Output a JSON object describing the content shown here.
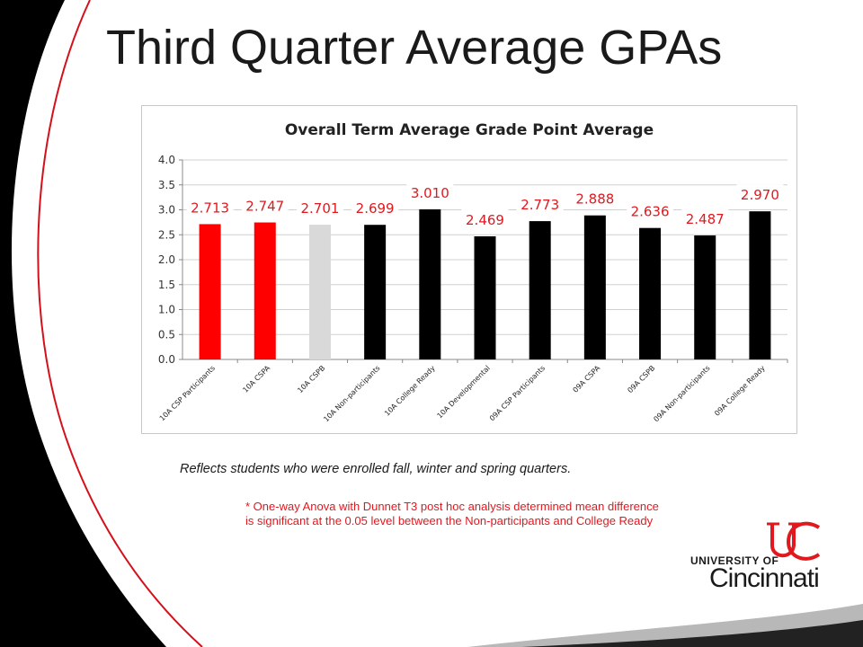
{
  "slide": {
    "title": "Third Quarter Average GPAs",
    "note": "Reflects students who were enrolled fall, winter and spring quarters.",
    "footnote": "* One-way Anova with Dunnet T3 post hoc analysis determined mean difference is significant at the 0.05 level between the Non-participants and College Ready"
  },
  "logo": {
    "line1": "UNIVERSITY OF",
    "line2": "Cincinnati"
  },
  "colors": {
    "accent_red": "#e0191f",
    "bar_red": "#ff0000",
    "bar_gray": "#d9d9d9",
    "bar_black": "#000000"
  },
  "chart_data": {
    "type": "bar",
    "title": "Overall Term Average Grade Point Average",
    "categories": [
      "10A CSP Participants",
      "10A CSPA",
      "10A CSPB",
      "10A Non-participants",
      "10A College Ready",
      "10A Developmental",
      "09A CSP Participants",
      "09A CSPA",
      "09A CSPB",
      "09A Non-participants",
      "09A College Ready"
    ],
    "values": [
      2.713,
      2.747,
      2.701,
      2.699,
      3.01,
      2.469,
      2.773,
      2.888,
      2.636,
      2.487,
      2.97
    ],
    "value_labels": [
      "2.713",
      "2.747",
      "2.701",
      "2.699",
      "3.010",
      "2.469",
      "2.773",
      "2.888",
      "2.636",
      "2.487",
      "2.970"
    ],
    "bar_colors": [
      "#ff0000",
      "#ff0000",
      "#d9d9d9",
      "#000000",
      "#000000",
      "#000000",
      "#000000",
      "#000000",
      "#000000",
      "#000000",
      "#000000"
    ],
    "yticks": [
      "0.0",
      "0.5",
      "1.0",
      "1.5",
      "2.0",
      "2.5",
      "3.0",
      "3.5",
      "4.0"
    ],
    "ylim": [
      0,
      4
    ],
    "grid": true,
    "legend": "none"
  }
}
